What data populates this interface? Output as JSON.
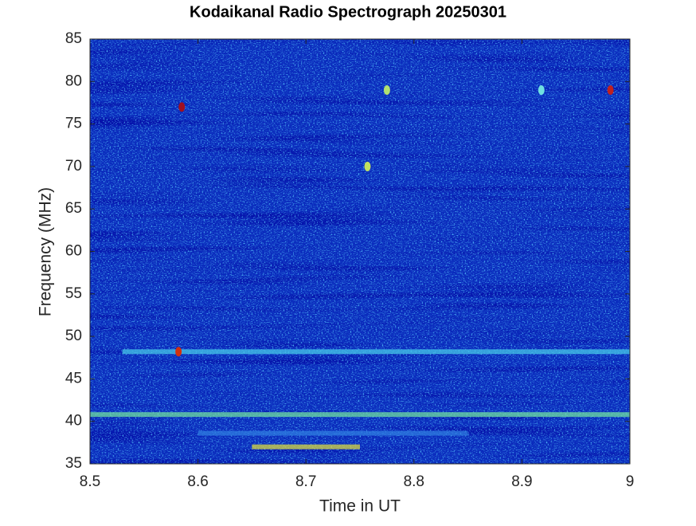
{
  "chart_data": {
    "type": "spectrogram",
    "title": "Kodaikanal Radio Spectrograph  20250301",
    "x_label": "Time in UT",
    "y_label": "Frequency (MHz)",
    "xlim": [
      8.5,
      9
    ],
    "xticks": [
      8.5,
      8.6,
      8.7,
      8.8,
      8.9,
      9
    ],
    "ylim": [
      35,
      85
    ],
    "yticks": [
      35,
      40,
      45,
      50,
      55,
      60,
      65,
      70,
      75,
      80,
      85
    ],
    "background_color": "#0a2bbd",
    "bands_y": [
      40.8,
      48.2,
      37,
      38.6
    ],
    "bands_x": [
      [
        8.5,
        9
      ],
      [
        8.53,
        9
      ],
      [
        8.65,
        8.75
      ],
      [
        8.6,
        8.85
      ]
    ],
    "bands_color": [
      "#6fe0a0",
      "#45c8e8",
      "#d8d840",
      "#2f7ee0"
    ],
    "spots_x": [
      8.585,
      8.582,
      8.982,
      8.918,
      8.775,
      8.757
    ],
    "spots_y": [
      77,
      48.2,
      79,
      79,
      79,
      70
    ],
    "spots_color": [
      "#a01020",
      "#d03010",
      "#c02020",
      "#70e0e0",
      "#b0e070",
      "#c0e060"
    ],
    "grid": false
  }
}
